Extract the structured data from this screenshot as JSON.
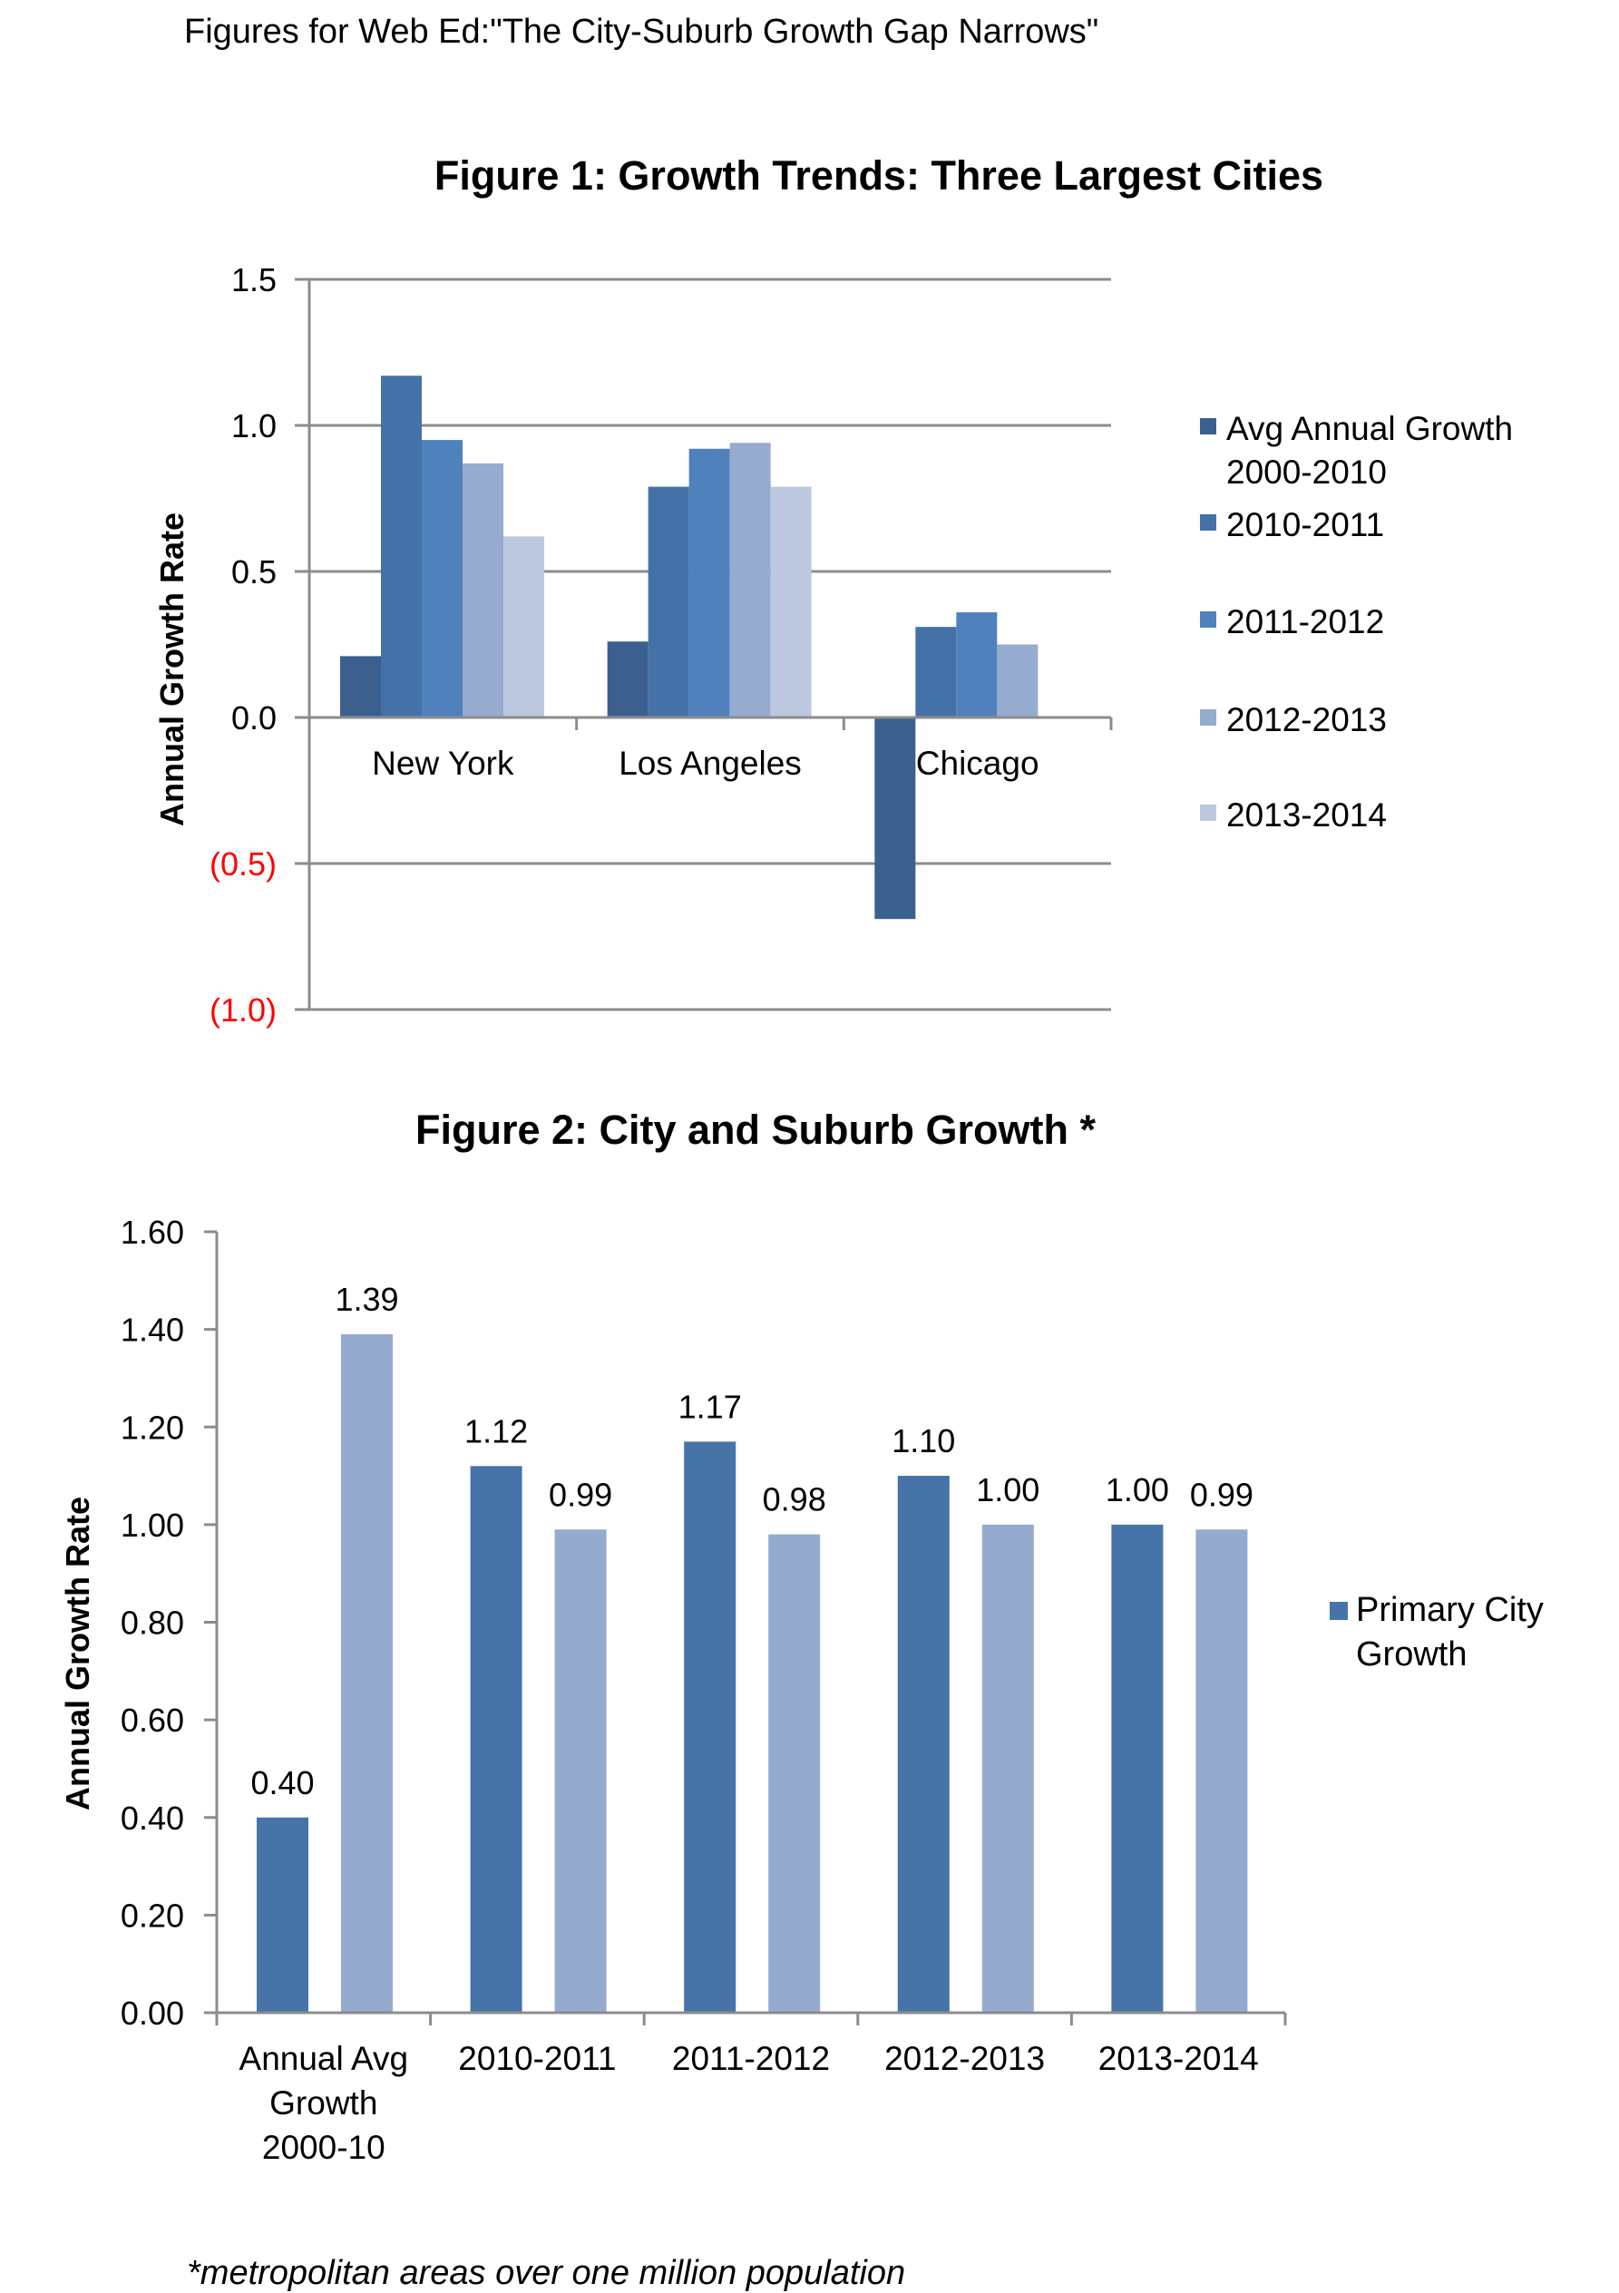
{
  "header": "Figures for Web Ed:\"The City-Suburb Growth Gap Narrows\"",
  "footnote": "*metropolitan areas over one million population",
  "chart_data": [
    {
      "type": "bar",
      "title": "Figure 1:  Growth Trends: Three Largest Cities",
      "ylabel": "Annual Growth Rate",
      "xlabel": "",
      "ylim": [
        -1.0,
        1.5
      ],
      "yticks": [
        {
          "value": 1.5,
          "label": "1.5",
          "color": "#000000"
        },
        {
          "value": 1.0,
          "label": "1.0",
          "color": "#000000"
        },
        {
          "value": 0.5,
          "label": "0.5",
          "color": "#000000"
        },
        {
          "value": 0.0,
          "label": "0.0",
          "color": "#000000"
        },
        {
          "value": -0.5,
          "label": "(0.5)",
          "color": "#ff0000"
        },
        {
          "value": -1.0,
          "label": "(1.0)",
          "color": "#ff0000"
        }
      ],
      "grid": true,
      "legend_position": "right",
      "categories": [
        "New York",
        "Los Angeles",
        "Chicago"
      ],
      "series": [
        {
          "name": [
            "Avg Annual Growth",
            "2000-2010"
          ],
          "color": "#3b5f8f",
          "values": [
            0.21,
            0.26,
            -0.69
          ]
        },
        {
          "name": [
            "2010-2011"
          ],
          "color": "#4472a8",
          "values": [
            1.17,
            0.79,
            0.31
          ]
        },
        {
          "name": [
            "2011-2012"
          ],
          "color": "#4f81bd",
          "values": [
            0.95,
            0.92,
            0.36
          ]
        },
        {
          "name": [
            "2012-2013"
          ],
          "color": "#95abd0",
          "values": [
            0.87,
            0.94,
            0.25
          ]
        },
        {
          "name": [
            "2013-2014"
          ],
          "color": "#bcc8e0",
          "values": [
            0.62,
            0.79,
            null
          ]
        }
      ]
    },
    {
      "type": "bar",
      "title": "Figure 2: City and Suburb Growth *",
      "ylabel": "Annual Growth Rate",
      "xlabel": "",
      "ylim": [
        0,
        1.6
      ],
      "yticks": [
        {
          "value": 1.6,
          "label": "1.60"
        },
        {
          "value": 1.4,
          "label": "1.40"
        },
        {
          "value": 1.2,
          "label": "1.20"
        },
        {
          "value": 1.0,
          "label": "1.00"
        },
        {
          "value": 0.8,
          "label": "0.80"
        },
        {
          "value": 0.6,
          "label": "0.60"
        },
        {
          "value": 0.4,
          "label": "0.40"
        },
        {
          "value": 0.2,
          "label": "0.20"
        },
        {
          "value": 0.0,
          "label": "0.00"
        }
      ],
      "grid": false,
      "legend_position": "right",
      "categories": [
        [
          "Annual Avg",
          "Growth",
          "2000-10"
        ],
        [
          "2010-2011"
        ],
        [
          "2011-2012"
        ],
        [
          "2012-2013"
        ],
        [
          "2013-2014"
        ]
      ],
      "series": [
        {
          "name": [
            "Primary City",
            "Growth"
          ],
          "color": "#4674a8",
          "values": [
            0.4,
            1.12,
            1.17,
            1.1,
            1.0
          ],
          "labels": [
            "0.40",
            "1.12",
            "1.17",
            "1.10",
            "1.00"
          ]
        },
        {
          "color": "#95aacf",
          "values": [
            1.39,
            0.99,
            0.98,
            1.0,
            0.99
          ],
          "labels": [
            "1.39",
            "0.99",
            "0.98",
            "1.00",
            "0.99"
          ]
        }
      ]
    }
  ]
}
